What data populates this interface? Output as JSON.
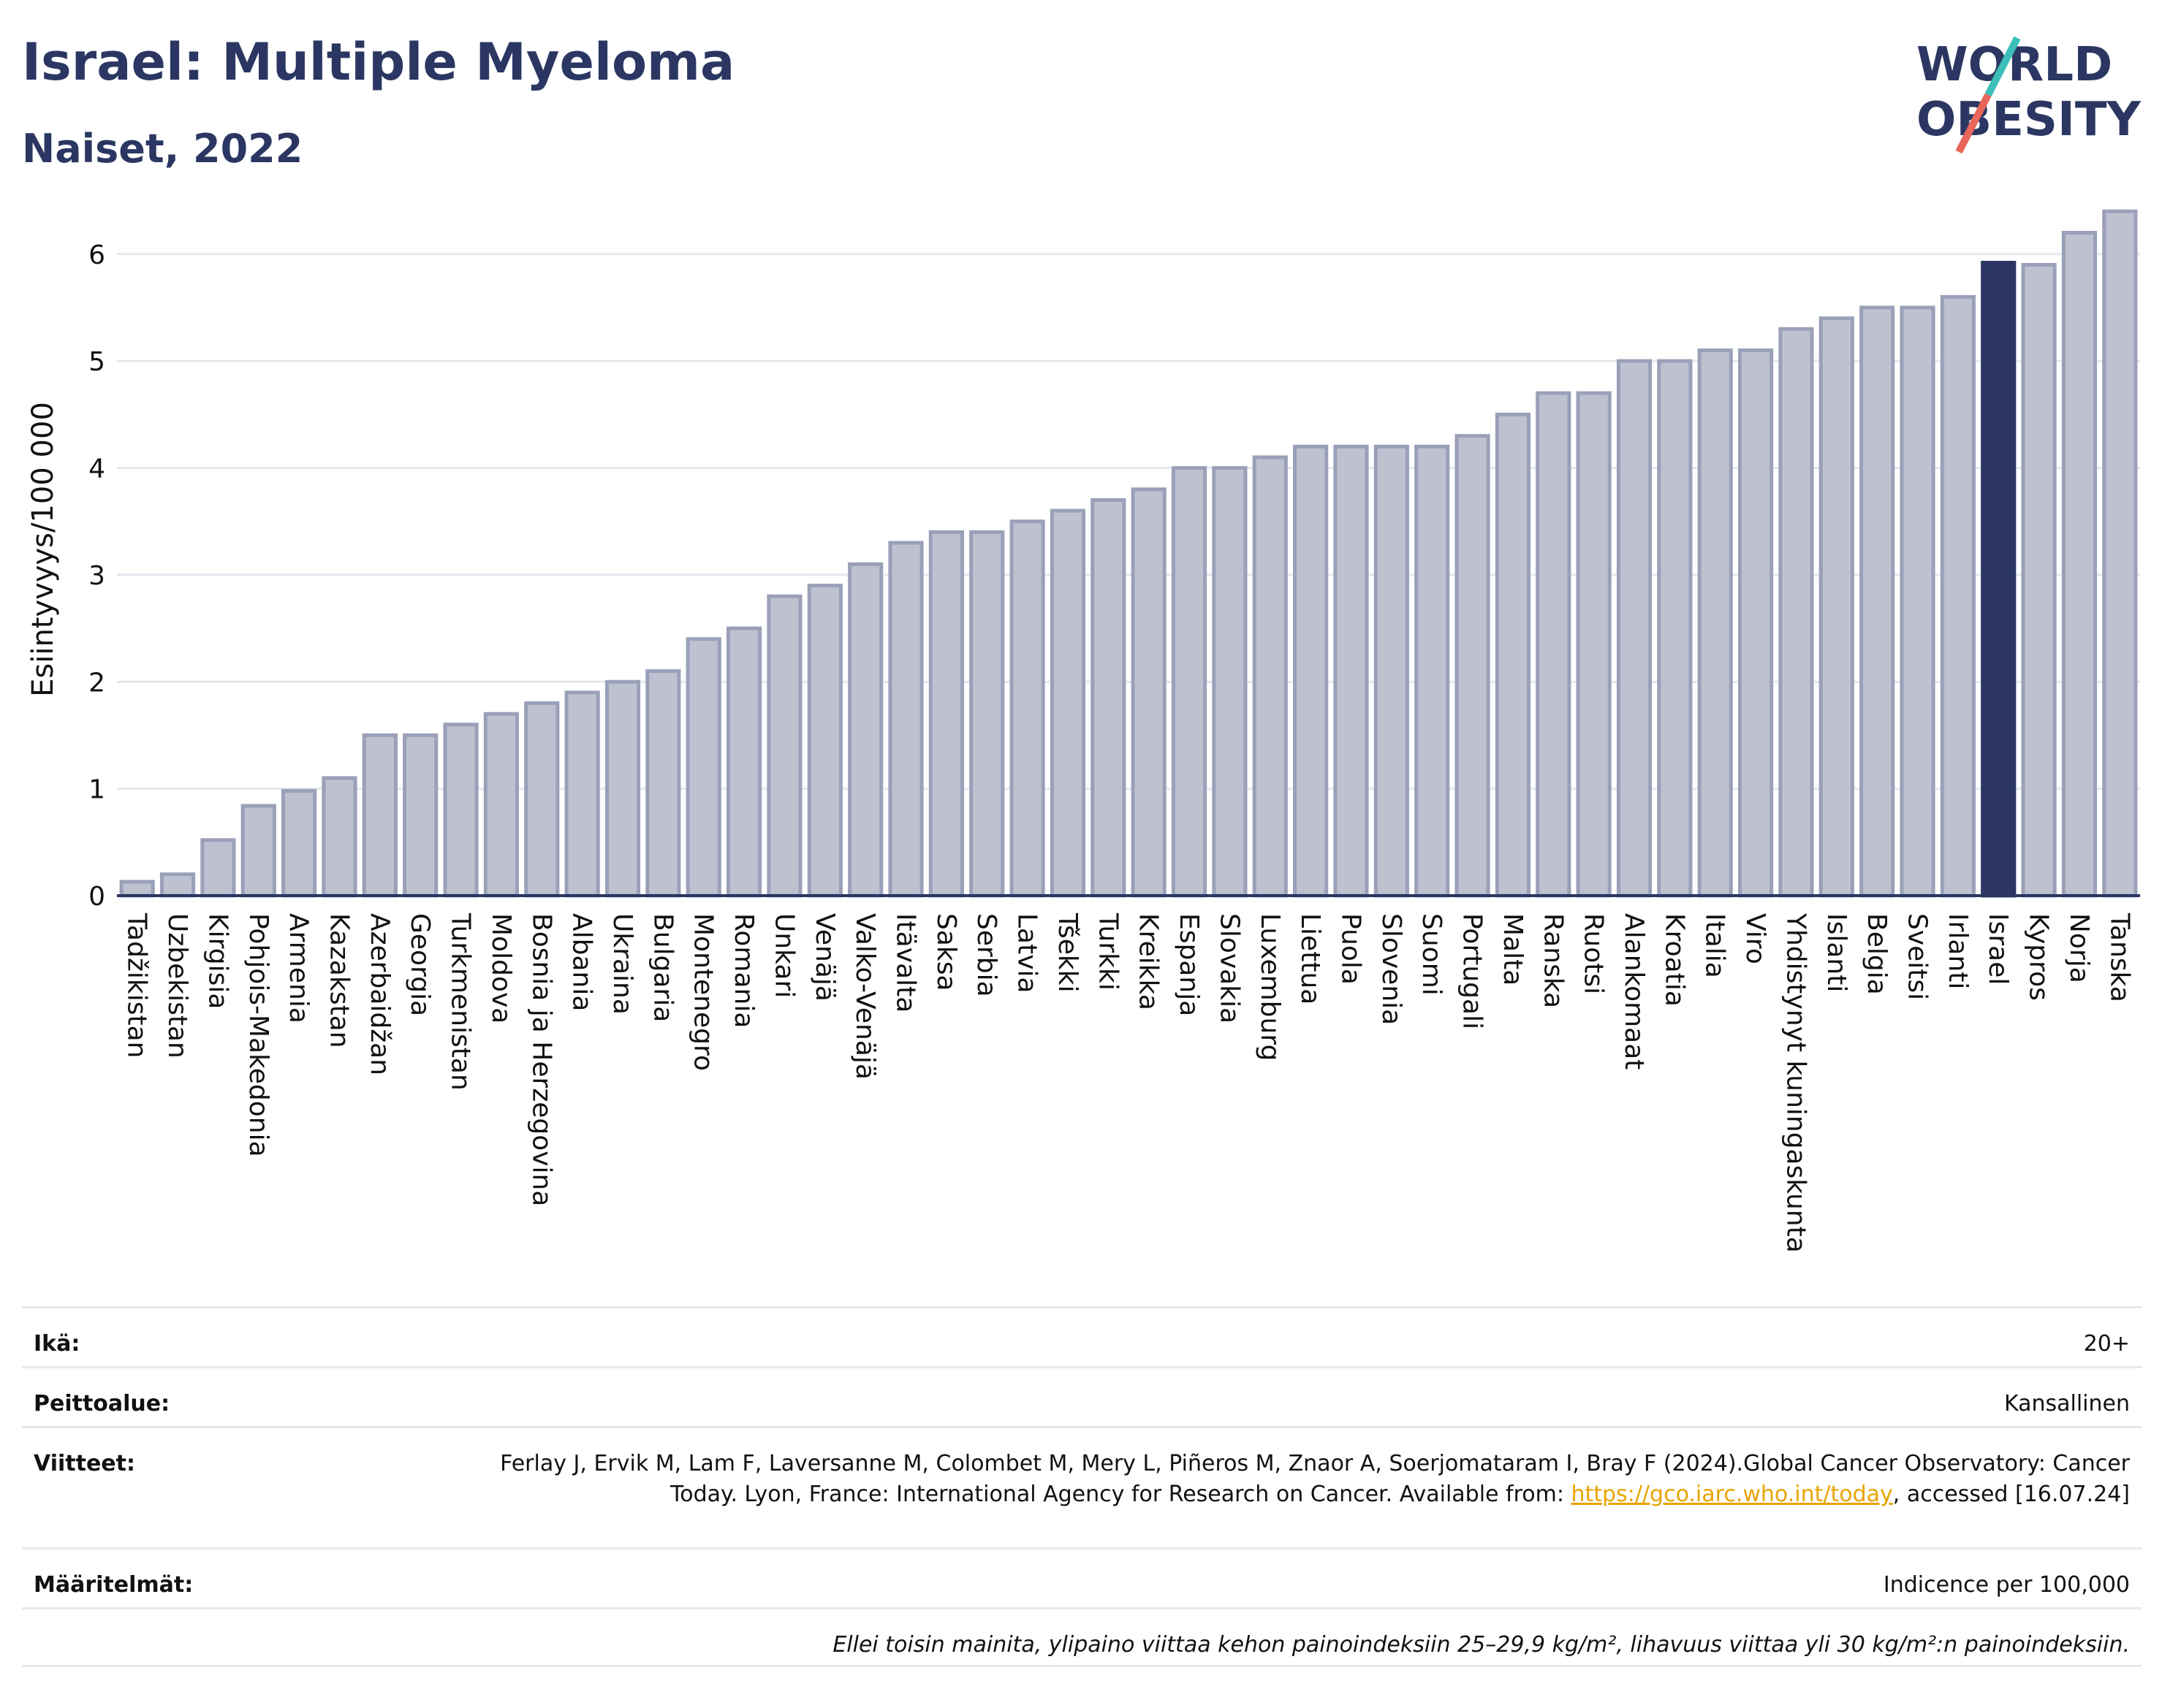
{
  "header": {
    "title": "Israel: Multiple Myeloma",
    "subtitle": "Naiset, 2022"
  },
  "logo": {
    "line1": "WORLD",
    "line2": "OBESITY",
    "text_color": "#2b3762",
    "slash_colors": [
      "#3bbfb8",
      "#e8665a"
    ]
  },
  "chart_data": {
    "type": "bar",
    "ylabel": "Esiintyvyys/100 000",
    "ylim": [
      0,
      6.6
    ],
    "yticks": [
      0,
      1,
      2,
      3,
      4,
      5,
      6
    ],
    "grid": true,
    "highlight": "Israel",
    "colors": {
      "bar": "#bdc1d0",
      "bar_edge": "#9aa0b8",
      "highlight": "#2b3762",
      "grid": "#e4e8ef",
      "axis": "#2b3762"
    },
    "categories": [
      "Tadžikistan",
      "Uzbekistan",
      "Kirgisia",
      "Pohjois-Makedonia",
      "Armenia",
      "Kazakstan",
      "Azerbaidžan",
      "Georgia",
      "Turkmenistan",
      "Moldova",
      "Bosnia ja Herzegovina",
      "Albania",
      "Ukraina",
      "Bulgaria",
      "Montenegro",
      "Romania",
      "Unkari",
      "Venäjä",
      "Valko-Venäjä",
      "Itävalta",
      "Saksa",
      "Serbia",
      "Latvia",
      "Tšekki",
      "Turkki",
      "Kreikka",
      "Espanja",
      "Slovakia",
      "Luxemburg",
      "Liettua",
      "Puola",
      "Slovenia",
      "Suomi",
      "Portugali",
      "Malta",
      "Ranska",
      "Ruotsi",
      "Alankomaat",
      "Kroatia",
      "Italia",
      "Viro",
      "Yhdistynyt kuningaskunta",
      "Islanti",
      "Belgia",
      "Sveitsi",
      "Irlanti",
      "Israel",
      "Kypros",
      "Norja",
      "Tanska"
    ],
    "values": [
      0.13,
      0.2,
      0.52,
      0.84,
      0.98,
      1.1,
      1.5,
      1.5,
      1.6,
      1.7,
      1.8,
      1.9,
      2.0,
      2.1,
      2.4,
      2.5,
      2.8,
      2.9,
      3.1,
      3.3,
      3.4,
      3.4,
      3.5,
      3.6,
      3.7,
      3.8,
      4.0,
      4.0,
      4.1,
      4.2,
      4.2,
      4.2,
      4.2,
      4.3,
      4.5,
      4.7,
      4.7,
      5.0,
      5.0,
      5.1,
      5.1,
      5.3,
      5.4,
      5.5,
      5.5,
      5.6,
      5.92,
      5.9,
      6.2,
      6.4
    ]
  },
  "info": {
    "rows": [
      {
        "label": "Ikä:",
        "value": "20+"
      },
      {
        "label": "Peittoalue:",
        "value": "Kansallinen"
      },
      {
        "label": "Viitteet:",
        "value_pre": "Ferlay J, Ervik M, Lam F, Laversanne M, Colombet M, Mery L, Piñeros M, Znaor A, Soerjomataram I, Bray F (2024).Global Cancer Observatory: Cancer Today. Lyon, France: International Agency for Research on Cancer. Available from: ",
        "link": "https://gco.iarc.who.int/today",
        "value_post": ", accessed [16.07.24]"
      },
      {
        "label": "Määritelmät:",
        "value": "Indicence per 100,000"
      }
    ],
    "note": "Ellei toisin mainita, ylipaino viittaa kehon painoindeksiin 25–29,9 kg/m², lihavuus viittaa yli 30 kg/m²:n painoindeksiin."
  }
}
